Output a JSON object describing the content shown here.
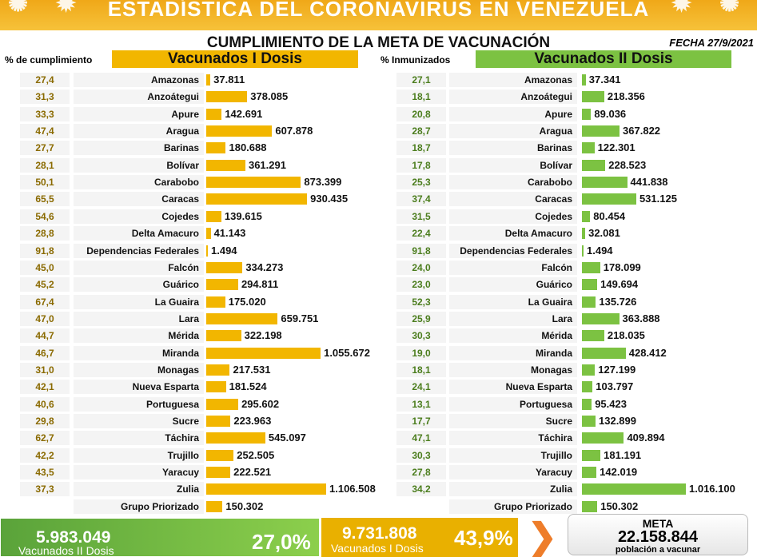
{
  "banner": {
    "title": "ESTADÍSTICA DEL CORONAVIRUS EN VENEZUELA"
  },
  "header": {
    "subtitle": "CUMPLIMIENTO DE LA META DE VACUNACIÓN",
    "fecha": "FECHA 27/9/2021"
  },
  "left": {
    "pct_label": "% de cumplimiento",
    "title": "Vacunados I Dosis",
    "color": "#f2b600"
  },
  "right": {
    "pct_label": "% Inmunizados",
    "title": "Vacunados II Dosis",
    "color": "#7cc242"
  },
  "chart_data": {
    "type": "bar",
    "categories": [
      "Amazonas",
      "Anzoátegui",
      "Apure",
      "Aragua",
      "Barinas",
      "Bolívar",
      "Carabobo",
      "Caracas",
      "Cojedes",
      "Delta Amacuro",
      "Dependencias Federales",
      "Falcón",
      "Guárico",
      "La Guaira",
      "Lara",
      "Mérida",
      "Miranda",
      "Monagas",
      "Nueva Esparta",
      "Portuguesa",
      "Sucre",
      "Táchira",
      "Trujillo",
      "Yaracuy",
      "Zulia",
      "Grupo Priorizado"
    ],
    "series": [
      {
        "name": "Vacunados I Dosis",
        "values": [
          37811,
          378085,
          142691,
          607878,
          180688,
          361291,
          873399,
          930435,
          139615,
          41143,
          1494,
          334273,
          294811,
          175020,
          659751,
          322198,
          1055672,
          217531,
          181524,
          295602,
          223963,
          545097,
          252505,
          222521,
          1106508,
          150302
        ],
        "labels": [
          "37.811",
          "378.085",
          "142.691",
          "607.878",
          "180.688",
          "361.291",
          "873.399",
          "930.435",
          "139.615",
          "41.143",
          "1.494",
          "334.273",
          "294.811",
          "175.020",
          "659.751",
          "322.198",
          "1.055.672",
          "217.531",
          "181.524",
          "295.602",
          "223.963",
          "545.097",
          "252.505",
          "222.521",
          "1.106.508",
          "150.302"
        ],
        "pct": [
          "27,4",
          "31,3",
          "33,3",
          "47,4",
          "27,7",
          "28,1",
          "50,1",
          "65,5",
          "54,6",
          "28,8",
          "91,8",
          "45,0",
          "45,2",
          "67,4",
          "47,0",
          "44,7",
          "46,7",
          "31,0",
          "42,1",
          "40,6",
          "29,8",
          "62,7",
          "42,2",
          "43,5",
          "37,3",
          ""
        ]
      },
      {
        "name": "Vacunados II Dosis",
        "values": [
          37341,
          218356,
          89036,
          367822,
          122301,
          228523,
          441838,
          531125,
          80454,
          32081,
          1494,
          178099,
          149694,
          135726,
          363888,
          218035,
          428412,
          127199,
          103797,
          95423,
          132899,
          409894,
          181191,
          142019,
          1016100,
          150302
        ],
        "labels": [
          "37.341",
          "218.356",
          "89.036",
          "367.822",
          "122.301",
          "228.523",
          "441.838",
          "531.125",
          "80.454",
          "32.081",
          "1.494",
          "178.099",
          "149.694",
          "135.726",
          "363.888",
          "218.035",
          "428.412",
          "127.199",
          "103.797",
          "95.423",
          "132.899",
          "409.894",
          "181.191",
          "142.019",
          "1.016.100",
          "150.302"
        ],
        "pct": [
          "27,1",
          "18,1",
          "20,8",
          "28,7",
          "18,7",
          "17,8",
          "25,3",
          "37,4",
          "31,5",
          "22,4",
          "91,8",
          "24,0",
          "23,0",
          "52,3",
          "25,9",
          "30,3",
          "19,0",
          "18,1",
          "24,1",
          "13,1",
          "17,7",
          "47,1",
          "30,3",
          "27,8",
          "34,2",
          ""
        ]
      }
    ]
  },
  "footer": {
    "dosis2": {
      "value": "5.983.049",
      "label": "Vacunados II Dosis",
      "pct": "27,0%"
    },
    "dosis1": {
      "value": "9.731.808",
      "label": "Vacunados I Dosis",
      "pct": "43,9%"
    },
    "meta": {
      "title": "META",
      "value": "22.158.844",
      "label": "población a vacunar"
    }
  }
}
